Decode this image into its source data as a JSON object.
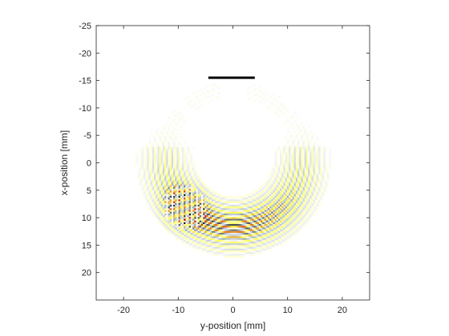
{
  "chart_data": {
    "type": "heatmap",
    "title": "",
    "xlabel": "y-position [mm]",
    "ylabel": "x-position [mm]",
    "xlim": [
      -25,
      25
    ],
    "ylim": [
      -25,
      25
    ],
    "y_axis_reversed": true,
    "grid": false,
    "legend": "none",
    "x_ticks": [
      -20,
      -10,
      0,
      10,
      20
    ],
    "x_tick_labels": [
      "-20",
      "-10",
      "0",
      "10",
      "20"
    ],
    "y_ticks": [
      -25,
      -20,
      -15,
      -10,
      -5,
      0,
      5,
      10,
      15,
      20
    ],
    "y_tick_labels": [
      "-25",
      "-20",
      "-15",
      "-10",
      "-5",
      "0",
      "5",
      "10",
      "15",
      "20"
    ],
    "field": {
      "description": "wavefield amplitude on concentric circular arcs",
      "arc_center": [
        0,
        -1
      ],
      "arc_radius_range": [
        8,
        17
      ],
      "arc_wavelength": 0.9,
      "focus_point": [
        -9,
        8
      ],
      "colors": {
        "negative": "#0a0a0a",
        "mid_negative": "#b4c3cd",
        "positive_low": "#ffff4d",
        "positive_high": "#c80000",
        "background": "#ffffff"
      }
    },
    "annotations": [
      {
        "type": "line",
        "x": [
          -4.5,
          4
        ],
        "y": [
          -15.5,
          -15.5
        ],
        "color": "#000000"
      }
    ]
  }
}
